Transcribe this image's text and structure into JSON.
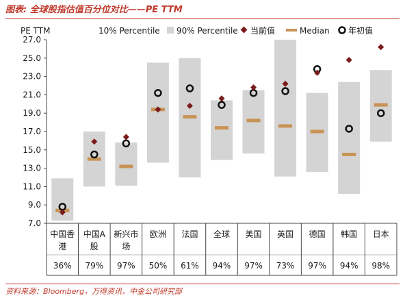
{
  "title": "图表: 全球股指估值百分位对比——PE TTM",
  "source": "资料来源：Bloomberg，万得资讯，中金公司研究部",
  "colors": {
    "band": "#d4d4d4",
    "current": "#7b1c1c",
    "median": "#c89356",
    "year_start": "#111111",
    "title": "#c0392b"
  },
  "chart_data": {
    "type": "range-band",
    "ylabel": "PE TTM",
    "ylim": [
      7.0,
      27.0
    ],
    "yticks": [
      7.0,
      9.0,
      11.0,
      13.0,
      15.0,
      17.0,
      19.0,
      21.0,
      23.0,
      25.0,
      27.0
    ],
    "grid": false,
    "legend_position": "top",
    "legend": {
      "p10": "10% Percentile",
      "p90": "90% Percentile",
      "current": "当前值",
      "median": "Median",
      "year_start": "年初值"
    },
    "categories": [
      [
        "中国香",
        "港"
      ],
      [
        "中国A",
        "股"
      ],
      [
        "新兴市",
        "场"
      ],
      [
        "欧洲"
      ],
      [
        "法国"
      ],
      [
        "全球"
      ],
      [
        "美国"
      ],
      [
        "英国"
      ],
      [
        "德国"
      ],
      [
        "韩国"
      ],
      [
        "日本"
      ]
    ],
    "percentile_labels": [
      "36%",
      "79%",
      "97%",
      "50%",
      "61%",
      "94%",
      "97%",
      "73%",
      "97%",
      "94%",
      "98%"
    ],
    "p10": [
      7.3,
      11.0,
      11.1,
      13.6,
      12.0,
      13.9,
      14.6,
      12.1,
      12.6,
      10.2,
      15.9
    ],
    "p90": [
      11.9,
      17.0,
      15.8,
      24.5,
      25.0,
      20.4,
      21.5,
      27.0,
      21.2,
      22.4,
      23.7
    ],
    "median": [
      8.4,
      14.0,
      13.2,
      19.4,
      18.6,
      17.4,
      18.2,
      17.6,
      17.0,
      14.5,
      19.9
    ],
    "current": [
      8.2,
      15.9,
      16.4,
      19.4,
      19.8,
      20.6,
      21.8,
      22.2,
      23.4,
      24.8,
      26.2
    ],
    "year_start": [
      8.8,
      14.5,
      15.7,
      21.2,
      21.7,
      19.9,
      21.2,
      21.4,
      23.8,
      17.3,
      19.0
    ]
  }
}
